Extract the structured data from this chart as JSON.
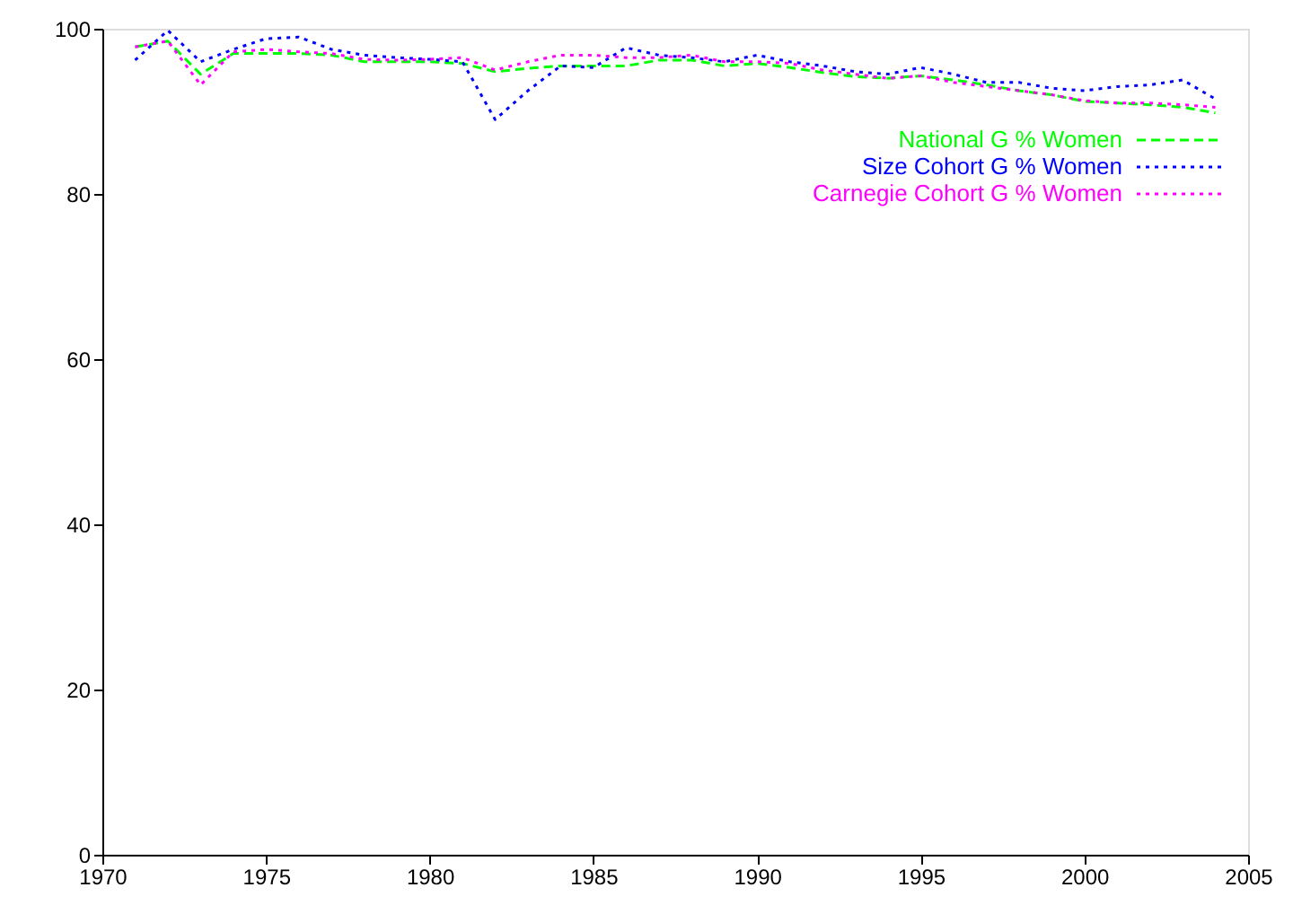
{
  "chart_data": {
    "type": "line",
    "x": [
      1971,
      1972,
      1973,
      1974,
      1975,
      1976,
      1977,
      1978,
      1979,
      1980,
      1981,
      1982,
      1983,
      1984,
      1985,
      1986,
      1987,
      1988,
      1989,
      1990,
      1991,
      1992,
      1993,
      1994,
      1995,
      1996,
      1997,
      1998,
      1999,
      2000,
      2001,
      2002,
      2003,
      2004
    ],
    "series": [
      {
        "name": "National G % Women",
        "color": "#00ff00",
        "line_style": "dashed",
        "values": [
          97.8,
          98.5,
          94.5,
          97,
          97,
          97,
          96.8,
          96,
          96,
          96,
          95.8,
          94.8,
          95.2,
          95.5,
          95.5,
          95.5,
          96.2,
          96.2,
          95.5,
          95.8,
          95.3,
          94.7,
          94.2,
          94,
          94.3,
          93.8,
          93.2,
          92.5,
          92,
          91.2,
          91,
          90.8,
          90.5,
          89.8
        ]
      },
      {
        "name": "Size Cohort G % Women",
        "color": "#0000ff",
        "line_style": "dotted",
        "values": [
          96.2,
          99.8,
          96,
          97.5,
          98.8,
          99,
          97.5,
          96.8,
          96.5,
          96.3,
          96,
          89,
          92.5,
          95.5,
          95.3,
          97.7,
          96.8,
          96.5,
          96,
          96.8,
          96,
          95.5,
          94.8,
          94.5,
          95.3,
          94.5,
          93.5,
          93.5,
          92.8,
          92.5,
          93,
          93.2,
          93.8,
          91.5
        ]
      },
      {
        "name": "Carnegie Cohort G % Women",
        "color": "#ff00ff",
        "line_style": "dotted",
        "values": [
          97.8,
          98.5,
          93.2,
          97.2,
          97.5,
          97.2,
          97,
          96.3,
          96.2,
          96.3,
          96.5,
          95,
          96,
          96.8,
          96.8,
          96.5,
          96.5,
          96.8,
          96,
          96,
          95.8,
          95,
          94.5,
          94,
          94.3,
          93.5,
          93,
          92.5,
          92,
          91.3,
          91,
          91,
          90.8,
          90.5
        ]
      }
    ],
    "xlim": [
      1970,
      2005
    ],
    "xticks": [
      1970,
      1975,
      1980,
      1985,
      1990,
      1995,
      2000,
      2005
    ],
    "ylim": [
      0,
      100
    ],
    "yticks": [
      0,
      20,
      40,
      60,
      80,
      100
    ],
    "grid": false,
    "legend": "top right"
  }
}
